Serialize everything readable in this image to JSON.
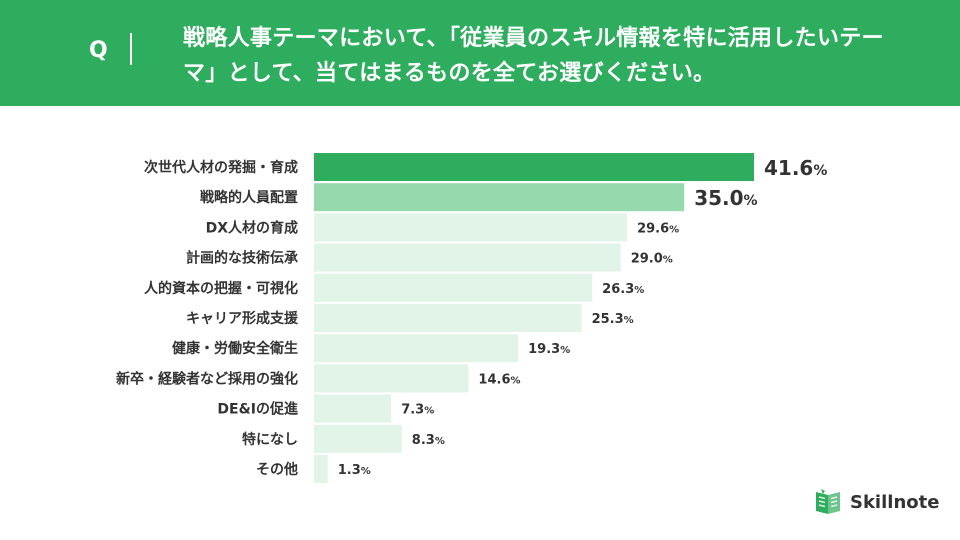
{
  "header": {
    "q_mark": "Q",
    "question": "戦略人事テーマにおいて、「従業員のスキル情報を特に活用したいテーマ」として、当てはまるものを全てお選びください。"
  },
  "colors": {
    "header_bg": "#2fad5f",
    "first_bar": "#2fad5f",
    "second_bar": "#95d9ad",
    "other_bars": "#e2f3e7",
    "highlight_text": "#2fad5f",
    "label_text": "#333333"
  },
  "chart_data": {
    "type": "bar",
    "orientation": "horizontal",
    "categories": [
      "次世代人材の発掘・育成",
      "戦略的人員配置",
      "DX人材の育成",
      "計画的な技術伝承",
      "人的資本の把握・可視化",
      "キャリア形成支援",
      "健康・労働安全衛生",
      "新卒・経験者など採用の強化",
      "DE&Iの促進",
      "特になし",
      "その他"
    ],
    "values": [
      41.6,
      35.0,
      29.6,
      29.0,
      26.3,
      25.3,
      19.3,
      14.6,
      7.3,
      8.3,
      1.3
    ],
    "value_labels": [
      "41.6",
      "35.0",
      "29.6",
      "29.0",
      "26.3",
      "25.3",
      "19.3",
      "14.6",
      "7.3",
      "8.3",
      "1.3"
    ],
    "unit": "%",
    "highlight_count": 2,
    "grid": false,
    "legend": "none"
  },
  "logo": {
    "text": "Skillnote",
    "icon": "skillnote-book-icon"
  }
}
